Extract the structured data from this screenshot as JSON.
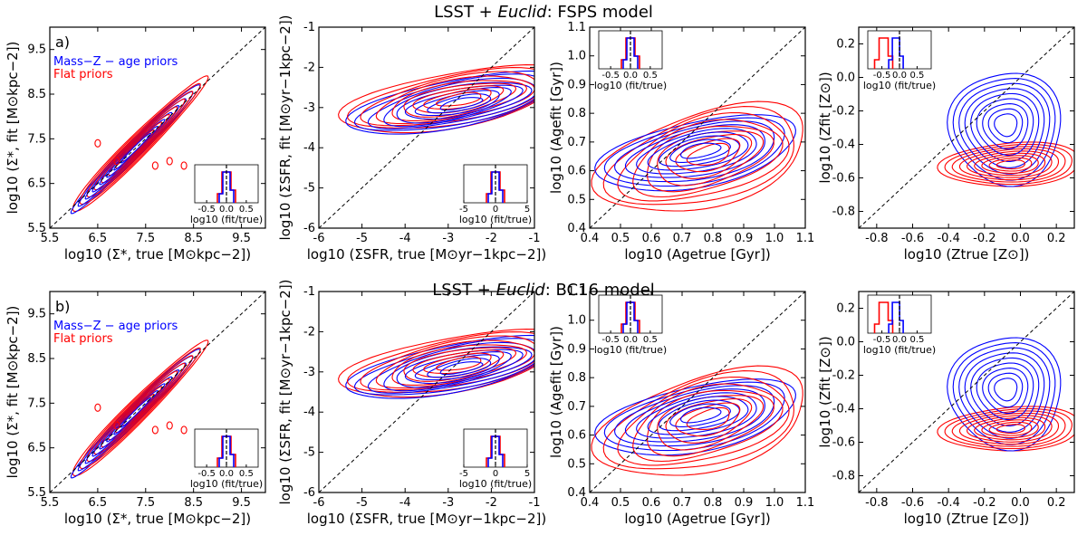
{
  "rows": [
    {
      "title": "LSST + Euclid: FSPS model",
      "title_prefix": "LSST + ",
      "title_italic": "Euclid",
      "title_suffix": ": FSPS model",
      "panel_label": "a)"
    },
    {
      "title": "LSST + Euclid: BC16 model",
      "title_prefix": "LSST + ",
      "title_italic": "Euclid",
      "title_suffix": ": BC16 model",
      "panel_label": "b)"
    }
  ],
  "legend": [
    {
      "label": "Mass−Z − age priors",
      "color": "#0000ff"
    },
    {
      "label": "Flat priors",
      "color": "#ff0000"
    }
  ],
  "colors": {
    "mass_z_age_priors": "#0000ff",
    "flat_priors": "#ff0000",
    "one_to_one": "#000000"
  },
  "chart_data": [
    {
      "type": "contour",
      "id": "surface-mass",
      "xlabel": "log10 (Σ*, true [M⊙kpc−2])",
      "ylabel": "log10 (Σ*, fit [M⊙kpc−2])",
      "xlim": [
        5.5,
        10.0
      ],
      "ylim": [
        5.5,
        10.0
      ],
      "xticks": [
        5.5,
        6.5,
        7.5,
        8.5,
        9.5
      ],
      "yticks": [
        5.5,
        6.5,
        7.5,
        8.5,
        9.5
      ],
      "xtick_labels": [
        "5.5",
        "6.5",
        "7.5",
        "8.5",
        "9.5"
      ],
      "ytick_labels": [
        "5.5",
        "6.5",
        "7.5",
        "8.5",
        "9.5"
      ],
      "center": [
        7.3,
        7.3
      ],
      "one_to_one": true,
      "inset": {
        "xlim": [
          -0.8,
          0.8
        ],
        "xticks": [
          -0.5,
          0.0,
          0.5
        ],
        "xtick_labels": [
          "-0.5",
          "0.0",
          "0.5"
        ],
        "xlabel": "log10 (fit/true)",
        "position": "bottom-right"
      }
    },
    {
      "type": "contour",
      "id": "sfr-density",
      "xlabel": "log10 (ΣSFR, true [M⊙yr−1kpc−2])",
      "ylabel": "log10 (ΣSFR, fit [M⊙yr−1kpc−2])",
      "xlim": [
        -6,
        -1
      ],
      "ylim": [
        -6,
        -1
      ],
      "xticks": [
        -6,
        -5,
        -4,
        -3,
        -2,
        -1
      ],
      "yticks": [
        -6,
        -5,
        -4,
        -3,
        -2,
        -1
      ],
      "xtick_labels": [
        "-6",
        "-5",
        "-4",
        "-3",
        "-2",
        "-1"
      ],
      "ytick_labels": [
        "-6",
        "-5",
        "-4",
        "-3",
        "-2",
        "-1"
      ],
      "center": [
        -2.7,
        -2.8
      ],
      "one_to_one": true,
      "inset": {
        "xlim": [
          -5,
          5
        ],
        "xticks": [
          -5,
          0,
          5
        ],
        "xtick_labels": [
          "-5",
          "0",
          "5"
        ],
        "xlabel": "log10 (fit/true)",
        "position": "bottom-right"
      }
    },
    {
      "type": "contour",
      "id": "age",
      "xlabel": "log10 (Agetrue [Gyr])",
      "ylabel": "log10 (Agefit [Gyr])",
      "xlim": [
        0.4,
        1.1
      ],
      "ylim": [
        0.4,
        1.1
      ],
      "xticks": [
        0.4,
        0.5,
        0.6,
        0.7,
        0.8,
        0.9,
        1.0,
        1.1
      ],
      "yticks": [
        0.4,
        0.5,
        0.6,
        0.7,
        0.8,
        0.9,
        1.0,
        1.1
      ],
      "xtick_labels": [
        "0.4",
        "0.5",
        "0.6",
        "0.7",
        "0.8",
        "0.9",
        "1.0",
        "1.1"
      ],
      "ytick_labels": [
        "0.4",
        "0.5",
        "0.6",
        "0.7",
        "0.8",
        "0.9",
        "1.0",
        "1.1"
      ],
      "center": [
        0.78,
        0.67
      ],
      "one_to_one": true,
      "inset": {
        "xlim": [
          -0.8,
          0.8
        ],
        "xticks": [
          -0.5,
          0.0,
          0.5
        ],
        "xtick_labels": [
          "-0.5",
          "0.0",
          "0.5"
        ],
        "xlabel": "log10 (fit/true)",
        "position": "top-left"
      }
    },
    {
      "type": "contour",
      "id": "metallicity",
      "xlabel": "log10 (Ztrue [Z⊙])",
      "ylabel": "log10 (Zfit [Z⊙])",
      "xlim": [
        -0.9,
        0.3
      ],
      "ylim": [
        -0.9,
        0.3
      ],
      "xticks": [
        -0.8,
        -0.6,
        -0.4,
        -0.2,
        0.0,
        0.2
      ],
      "yticks": [
        -0.8,
        -0.6,
        -0.4,
        -0.2,
        0.0,
        0.2
      ],
      "xtick_labels": [
        "-0.8",
        "-0.6",
        "-0.4",
        "-0.2",
        "0.0",
        "0.2"
      ],
      "ytick_labels": [
        "-0.8",
        "-0.6",
        "-0.4",
        "-0.2",
        "0.0",
        "0.2"
      ],
      "center_blue": [
        -0.08,
        -0.3
      ],
      "center_red": [
        -0.05,
        -0.52
      ],
      "one_to_one": true,
      "inset": {
        "xlim": [
          -0.9,
          0.9
        ],
        "xticks": [
          -0.5,
          0.0,
          0.5
        ],
        "xtick_labels": [
          "-0.5",
          "0.0",
          "0.5"
        ],
        "xlabel": "log10 (fit/true)",
        "position": "top-left"
      }
    }
  ]
}
